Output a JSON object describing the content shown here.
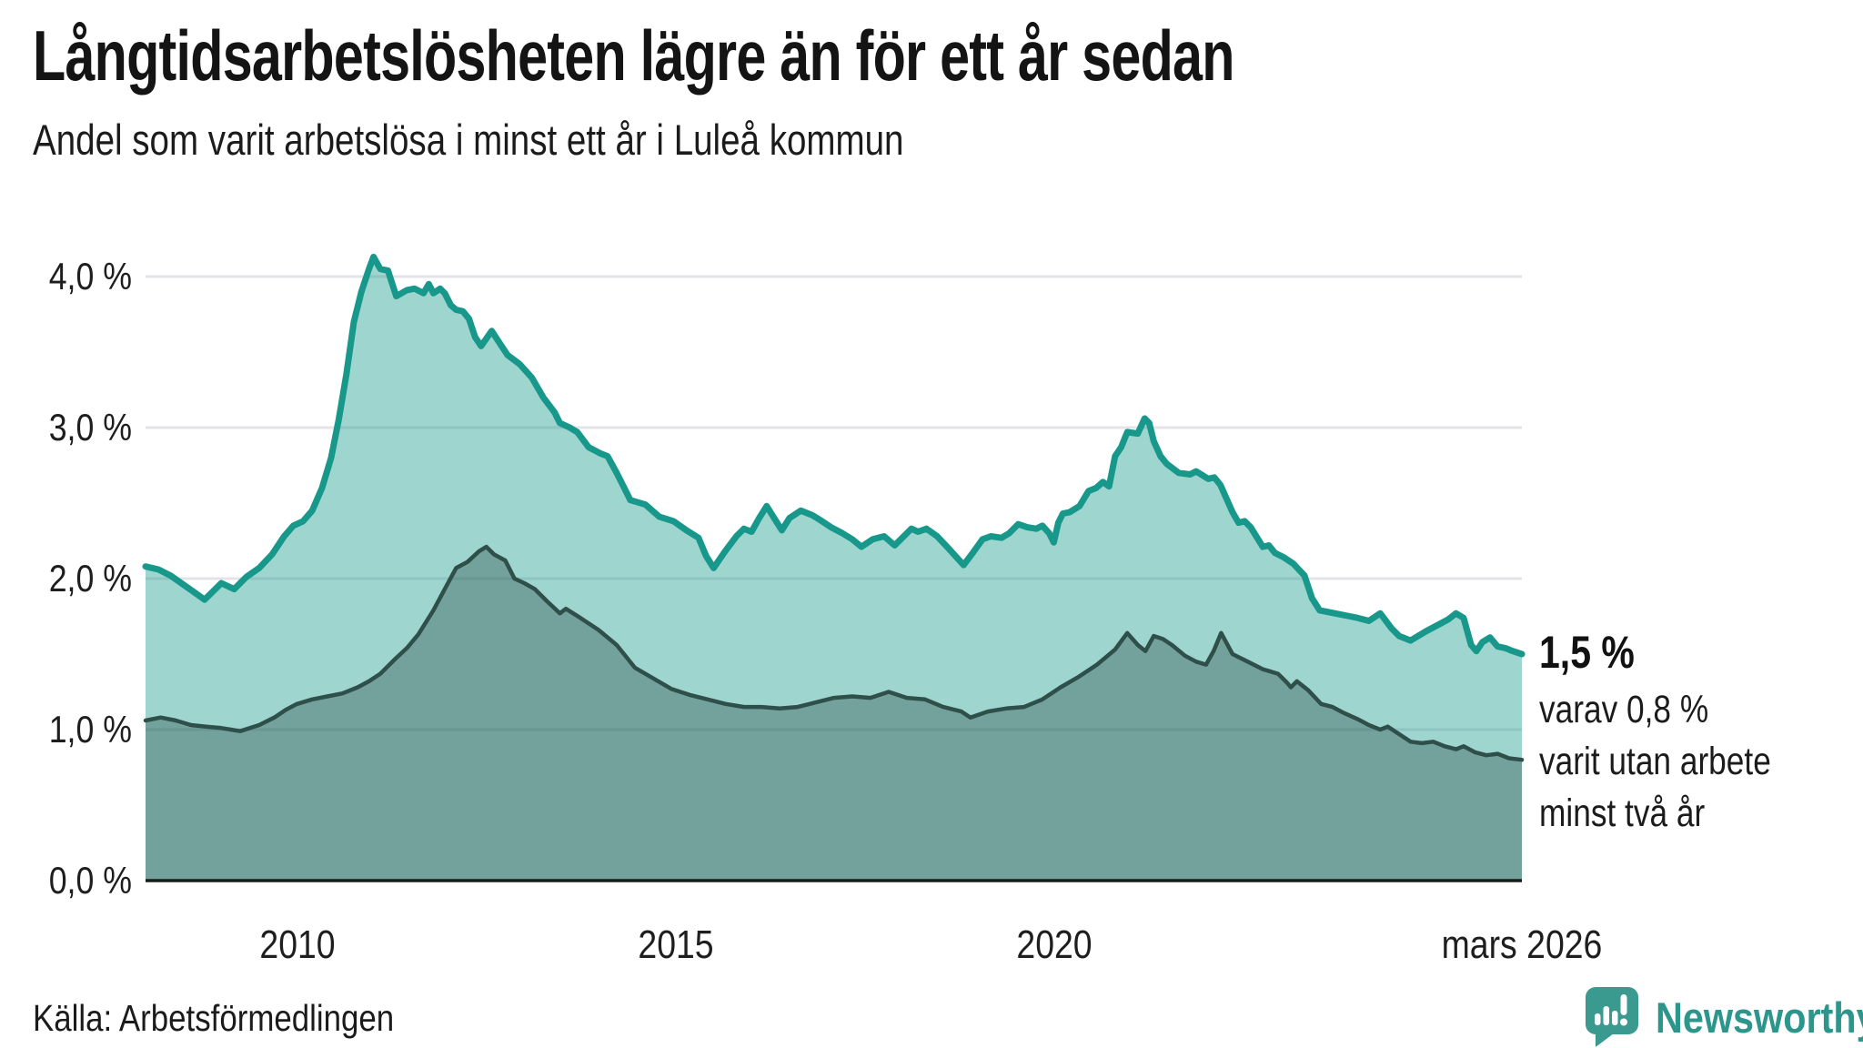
{
  "header": {
    "title": "Långtidsarbetslösheten lägre än för ett år sedan",
    "subtitle": "Andel som varit arbetslösa i minst ett år i Luleå kommun"
  },
  "chart_data": {
    "type": "area",
    "title": "Långtidsarbetslösheten lägre än för ett år sedan",
    "subtitle": "Andel som varit arbetslösa i minst ett år i Luleå kommun",
    "grid": true,
    "legend": "none",
    "unit": "%",
    "x_axis": {
      "range": [
        2008.0,
        2026.17
      ],
      "ticks": [
        {
          "label": "2010",
          "value": 2010.0
        },
        {
          "label": "2015",
          "value": 2015.0
        },
        {
          "label": "2020",
          "value": 2020.0
        },
        {
          "label": "mars 2026",
          "value": 2026.17
        }
      ]
    },
    "y_axis": {
      "range": [
        0,
        4.4
      ],
      "ticks": [
        {
          "label": "4,0 %",
          "value": 4.0
        },
        {
          "label": "3,0 %",
          "value": 3.0
        },
        {
          "label": "2,0 %",
          "value": 2.0
        },
        {
          "label": "1,0 %",
          "value": 1.0
        },
        {
          "label": "0,0 %",
          "value": 0.0
        }
      ]
    },
    "series": [
      {
        "name": "Andel arbetslösa minst ett år",
        "line_color": "#17988a",
        "line_width": 7,
        "fill_color": "#17988a",
        "fill_opacity": 0.41,
        "end_value_label": "1,5 %",
        "points": [
          [
            2008.0,
            2.08
          ],
          [
            2008.17,
            2.06
          ],
          [
            2008.33,
            2.02
          ],
          [
            2008.5,
            1.96
          ],
          [
            2008.67,
            1.9
          ],
          [
            2008.78,
            1.86
          ],
          [
            2008.92,
            1.93
          ],
          [
            2009.0,
            1.97
          ],
          [
            2009.17,
            1.93
          ],
          [
            2009.33,
            2.01
          ],
          [
            2009.5,
            2.07
          ],
          [
            2009.67,
            2.16
          ],
          [
            2009.83,
            2.28
          ],
          [
            2009.95,
            2.35
          ],
          [
            2010.08,
            2.38
          ],
          [
            2010.2,
            2.45
          ],
          [
            2010.33,
            2.6
          ],
          [
            2010.45,
            2.8
          ],
          [
            2010.55,
            3.05
          ],
          [
            2010.65,
            3.35
          ],
          [
            2010.75,
            3.7
          ],
          [
            2010.85,
            3.9
          ],
          [
            2010.95,
            4.05
          ],
          [
            2011.01,
            4.13
          ],
          [
            2011.1,
            4.05
          ],
          [
            2011.2,
            4.04
          ],
          [
            2011.31,
            3.87
          ],
          [
            2011.45,
            3.91
          ],
          [
            2011.55,
            3.92
          ],
          [
            2011.67,
            3.89
          ],
          [
            2011.74,
            3.95
          ],
          [
            2011.8,
            3.89
          ],
          [
            2011.89,
            3.92
          ],
          [
            2011.95,
            3.89
          ],
          [
            2012.03,
            3.81
          ],
          [
            2012.1,
            3.78
          ],
          [
            2012.19,
            3.77
          ],
          [
            2012.27,
            3.72
          ],
          [
            2012.35,
            3.6
          ],
          [
            2012.43,
            3.54
          ],
          [
            2012.57,
            3.64
          ],
          [
            2012.7,
            3.54
          ],
          [
            2012.78,
            3.48
          ],
          [
            2012.94,
            3.42
          ],
          [
            2013.1,
            3.33
          ],
          [
            2013.25,
            3.2
          ],
          [
            2013.4,
            3.1
          ],
          [
            2013.47,
            3.03
          ],
          [
            2013.6,
            3.0
          ],
          [
            2013.7,
            2.97
          ],
          [
            2013.85,
            2.87
          ],
          [
            2014.0,
            2.83
          ],
          [
            2014.1,
            2.81
          ],
          [
            2014.22,
            2.7
          ],
          [
            2014.3,
            2.62
          ],
          [
            2014.4,
            2.52
          ],
          [
            2014.6,
            2.49
          ],
          [
            2014.78,
            2.41
          ],
          [
            2014.97,
            2.38
          ],
          [
            2015.14,
            2.32
          ],
          [
            2015.3,
            2.27
          ],
          [
            2015.4,
            2.15
          ],
          [
            2015.5,
            2.07
          ],
          [
            2015.65,
            2.18
          ],
          [
            2015.8,
            2.28
          ],
          [
            2015.9,
            2.33
          ],
          [
            2016.0,
            2.31
          ],
          [
            2016.1,
            2.4
          ],
          [
            2016.2,
            2.48
          ],
          [
            2016.3,
            2.4
          ],
          [
            2016.4,
            2.32
          ],
          [
            2016.5,
            2.4
          ],
          [
            2016.65,
            2.45
          ],
          [
            2016.8,
            2.42
          ],
          [
            2016.9,
            2.39
          ],
          [
            2017.05,
            2.34
          ],
          [
            2017.2,
            2.3
          ],
          [
            2017.33,
            2.26
          ],
          [
            2017.45,
            2.21
          ],
          [
            2017.6,
            2.26
          ],
          [
            2017.75,
            2.28
          ],
          [
            2017.89,
            2.22
          ],
          [
            2018.05,
            2.3
          ],
          [
            2018.11,
            2.33
          ],
          [
            2018.2,
            2.31
          ],
          [
            2018.31,
            2.33
          ],
          [
            2018.45,
            2.28
          ],
          [
            2018.6,
            2.2
          ],
          [
            2018.8,
            2.09
          ],
          [
            2018.92,
            2.17
          ],
          [
            2019.05,
            2.26
          ],
          [
            2019.16,
            2.28
          ],
          [
            2019.3,
            2.27
          ],
          [
            2019.4,
            2.3
          ],
          [
            2019.52,
            2.36
          ],
          [
            2019.64,
            2.34
          ],
          [
            2019.76,
            2.33
          ],
          [
            2019.84,
            2.35
          ],
          [
            2019.93,
            2.3
          ],
          [
            2019.99,
            2.24
          ],
          [
            2020.05,
            2.37
          ],
          [
            2020.11,
            2.43
          ],
          [
            2020.2,
            2.44
          ],
          [
            2020.33,
            2.48
          ],
          [
            2020.45,
            2.58
          ],
          [
            2020.55,
            2.6
          ],
          [
            2020.64,
            2.64
          ],
          [
            2020.72,
            2.61
          ],
          [
            2020.8,
            2.81
          ],
          [
            2020.88,
            2.87
          ],
          [
            2020.96,
            2.97
          ],
          [
            2021.1,
            2.96
          ],
          [
            2021.19,
            3.06
          ],
          [
            2021.25,
            3.03
          ],
          [
            2021.31,
            2.91
          ],
          [
            2021.4,
            2.81
          ],
          [
            2021.48,
            2.76
          ],
          [
            2021.64,
            2.7
          ],
          [
            2021.79,
            2.69
          ],
          [
            2021.87,
            2.71
          ],
          [
            2022.03,
            2.66
          ],
          [
            2022.11,
            2.67
          ],
          [
            2022.19,
            2.62
          ],
          [
            2022.35,
            2.44
          ],
          [
            2022.43,
            2.37
          ],
          [
            2022.51,
            2.38
          ],
          [
            2022.59,
            2.34
          ],
          [
            2022.75,
            2.21
          ],
          [
            2022.83,
            2.22
          ],
          [
            2022.91,
            2.17
          ],
          [
            2023.03,
            2.14
          ],
          [
            2023.15,
            2.1
          ],
          [
            2023.3,
            2.02
          ],
          [
            2023.4,
            1.87
          ],
          [
            2023.5,
            1.79
          ],
          [
            2023.7,
            1.77
          ],
          [
            2023.9,
            1.75
          ],
          [
            2024.0,
            1.74
          ],
          [
            2024.15,
            1.72
          ],
          [
            2024.3,
            1.77
          ],
          [
            2024.45,
            1.67
          ],
          [
            2024.55,
            1.62
          ],
          [
            2024.7,
            1.59
          ],
          [
            2024.9,
            1.65
          ],
          [
            2025.05,
            1.69
          ],
          [
            2025.2,
            1.73
          ],
          [
            2025.3,
            1.77
          ],
          [
            2025.4,
            1.74
          ],
          [
            2025.5,
            1.56
          ],
          [
            2025.57,
            1.52
          ],
          [
            2025.65,
            1.58
          ],
          [
            2025.75,
            1.61
          ],
          [
            2025.85,
            1.55
          ],
          [
            2025.95,
            1.54
          ],
          [
            2026.05,
            1.52
          ],
          [
            2026.17,
            1.5
          ]
        ]
      },
      {
        "name": "Andel arbetslösa minst två år",
        "line_color": "#2e4f4a",
        "line_width": 4.5,
        "fill_color": "#2e4f4a",
        "fill_opacity": 0.39,
        "end_value_label": "0,8 %",
        "points": [
          [
            2008.0,
            1.06
          ],
          [
            2008.2,
            1.08
          ],
          [
            2008.4,
            1.06
          ],
          [
            2008.6,
            1.03
          ],
          [
            2008.8,
            1.02
          ],
          [
            2009.0,
            1.01
          ],
          [
            2009.25,
            0.99
          ],
          [
            2009.5,
            1.03
          ],
          [
            2009.7,
            1.08
          ],
          [
            2009.85,
            1.13
          ],
          [
            2010.0,
            1.17
          ],
          [
            2010.2,
            1.2
          ],
          [
            2010.4,
            1.22
          ],
          [
            2010.6,
            1.24
          ],
          [
            2010.8,
            1.28
          ],
          [
            2010.95,
            1.32
          ],
          [
            2011.1,
            1.37
          ],
          [
            2011.3,
            1.47
          ],
          [
            2011.45,
            1.54
          ],
          [
            2011.6,
            1.63
          ],
          [
            2011.8,
            1.79
          ],
          [
            2011.95,
            1.93
          ],
          [
            2012.1,
            2.07
          ],
          [
            2012.25,
            2.11
          ],
          [
            2012.4,
            2.18
          ],
          [
            2012.5,
            2.21
          ],
          [
            2012.6,
            2.16
          ],
          [
            2012.75,
            2.12
          ],
          [
            2012.87,
            2.0
          ],
          [
            2013.0,
            1.97
          ],
          [
            2013.14,
            1.93
          ],
          [
            2013.3,
            1.85
          ],
          [
            2013.47,
            1.77
          ],
          [
            2013.55,
            1.8
          ],
          [
            2013.74,
            1.74
          ],
          [
            2013.98,
            1.66
          ],
          [
            2014.22,
            1.56
          ],
          [
            2014.46,
            1.41
          ],
          [
            2014.7,
            1.34
          ],
          [
            2014.94,
            1.27
          ],
          [
            2015.18,
            1.23
          ],
          [
            2015.42,
            1.2
          ],
          [
            2015.66,
            1.17
          ],
          [
            2015.9,
            1.15
          ],
          [
            2016.13,
            1.15
          ],
          [
            2016.37,
            1.14
          ],
          [
            2016.61,
            1.15
          ],
          [
            2016.85,
            1.18
          ],
          [
            2017.09,
            1.21
          ],
          [
            2017.33,
            1.22
          ],
          [
            2017.57,
            1.21
          ],
          [
            2017.81,
            1.25
          ],
          [
            2018.05,
            1.21
          ],
          [
            2018.29,
            1.2
          ],
          [
            2018.53,
            1.15
          ],
          [
            2018.77,
            1.12
          ],
          [
            2018.89,
            1.08
          ],
          [
            2019.12,
            1.12
          ],
          [
            2019.36,
            1.14
          ],
          [
            2019.6,
            1.15
          ],
          [
            2019.84,
            1.2
          ],
          [
            2020.08,
            1.28
          ],
          [
            2020.32,
            1.35
          ],
          [
            2020.56,
            1.43
          ],
          [
            2020.8,
            1.53
          ],
          [
            2020.96,
            1.64
          ],
          [
            2021.1,
            1.56
          ],
          [
            2021.2,
            1.52
          ],
          [
            2021.31,
            1.62
          ],
          [
            2021.43,
            1.6
          ],
          [
            2021.55,
            1.56
          ],
          [
            2021.72,
            1.49
          ],
          [
            2021.87,
            1.45
          ],
          [
            2022.0,
            1.43
          ],
          [
            2022.1,
            1.52
          ],
          [
            2022.2,
            1.64
          ],
          [
            2022.35,
            1.5
          ],
          [
            2022.55,
            1.45
          ],
          [
            2022.75,
            1.4
          ],
          [
            2022.95,
            1.37
          ],
          [
            2023.07,
            1.31
          ],
          [
            2023.12,
            1.28
          ],
          [
            2023.2,
            1.32
          ],
          [
            2023.35,
            1.26
          ],
          [
            2023.52,
            1.17
          ],
          [
            2023.67,
            1.15
          ],
          [
            2023.82,
            1.11
          ],
          [
            2024.0,
            1.07
          ],
          [
            2024.15,
            1.03
          ],
          [
            2024.3,
            1.0
          ],
          [
            2024.4,
            1.02
          ],
          [
            2024.55,
            0.97
          ],
          [
            2024.7,
            0.92
          ],
          [
            2024.85,
            0.91
          ],
          [
            2025.0,
            0.92
          ],
          [
            2025.15,
            0.89
          ],
          [
            2025.3,
            0.87
          ],
          [
            2025.4,
            0.89
          ],
          [
            2025.55,
            0.85
          ],
          [
            2025.7,
            0.83
          ],
          [
            2025.85,
            0.84
          ],
          [
            2026.0,
            0.81
          ],
          [
            2026.17,
            0.8
          ]
        ]
      }
    ],
    "annotation": {
      "value_label": "1,5 %",
      "detail_lines": [
        "varav 0,8 %",
        "varit utan arbete",
        "minst två år"
      ]
    },
    "colors": {
      "gridline": "#e4e4e8",
      "axis_line": "#1a1a1a",
      "background": "#ffffff"
    }
  },
  "source": {
    "label": "Källa: Arbetsförmedlingen"
  },
  "branding": {
    "name": "Newsworthy",
    "icon": "bar-chart-speech-bubble-icon",
    "icon_color": "#3a9a90",
    "text_color": "#2c968c"
  }
}
